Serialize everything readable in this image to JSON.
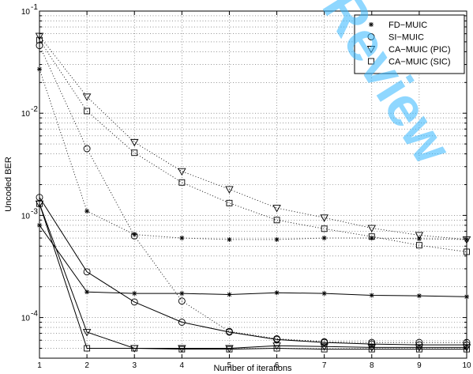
{
  "chart_data": {
    "type": "line",
    "xlabel": "Number of iterations",
    "ylabel": "Uncoded BER",
    "xlim": [
      1,
      10
    ],
    "ylim": [
      4e-05,
      0.1
    ],
    "yscale": "log",
    "grid": true,
    "legend_position": "top-right",
    "x_ticks": [
      "1",
      "2",
      "3",
      "4",
      "5",
      "6",
      "7",
      "8",
      "9",
      "10"
    ],
    "y_ticks": [
      {
        "value": 0.0001,
        "base": "10",
        "exp": "-4"
      },
      {
        "value": 0.001,
        "base": "10",
        "exp": "-3"
      },
      {
        "value": 0.01,
        "base": "10",
        "exp": "-2"
      },
      {
        "value": 0.1,
        "base": "10",
        "exp": "-1"
      }
    ],
    "x": [
      1,
      2,
      3,
      4,
      5,
      6,
      7,
      8,
      9,
      10
    ],
    "series": [
      {
        "name": "FD−MUIC",
        "marker": "star",
        "style": "solid",
        "values": [
          0.0008,
          0.000178,
          0.000172,
          0.000172,
          0.000168,
          0.000175,
          0.000172,
          0.000165,
          0.000163,
          0.00016
        ]
      },
      {
        "name": "FD−MUIC",
        "marker": "star",
        "style": "dotted",
        "values": [
          0.027,
          0.0011,
          0.00065,
          0.0006,
          0.00058,
          0.00058,
          0.0006,
          0.0006,
          0.00059,
          0.00058
        ]
      },
      {
        "name": "SI−MUIC",
        "marker": "circle",
        "style": "solid",
        "values": [
          0.0015,
          0.00028,
          0.000142,
          9e-05,
          7.2e-05,
          6.1e-05,
          5.7e-05,
          5.5e-05,
          5.4e-05,
          5.4e-05
        ]
      },
      {
        "name": "SI−MUIC",
        "marker": "circle",
        "style": "dotted",
        "values": [
          0.046,
          0.0045,
          0.00063,
          0.000145,
          7.3e-05,
          6.2e-05,
          5.8e-05,
          5.7e-05,
          5.7e-05,
          5.7e-05
        ]
      },
      {
        "name": "CA−MUIC (PIC)",
        "marker": "triangle-down",
        "style": "solid",
        "values": [
          0.0013,
          7.2e-05,
          5e-05,
          5e-05,
          5e-05,
          5.3e-05,
          5.2e-05,
          5.1e-05,
          5.1e-05,
          5.1e-05
        ]
      },
      {
        "name": "CA−MUIC (PIC)",
        "marker": "triangle-down",
        "style": "dotted",
        "values": [
          0.057,
          0.0145,
          0.0052,
          0.0027,
          0.0018,
          0.00118,
          0.00095,
          0.00075,
          0.00064,
          0.00058
        ]
      },
      {
        "name": "CA−MUIC (SIC)",
        "marker": "square",
        "style": "solid",
        "values": [
          0.0013,
          5e-05,
          5e-05,
          4.9e-05,
          4.9e-05,
          5e-05,
          4.9e-05,
          4.9e-05,
          4.9e-05,
          4.9e-05
        ]
      },
      {
        "name": "CA−MUIC (SIC)",
        "marker": "square",
        "style": "dotted",
        "values": [
          0.052,
          0.0105,
          0.0041,
          0.0021,
          0.00132,
          0.0009,
          0.00074,
          0.00062,
          0.00051,
          0.00044
        ]
      }
    ],
    "legend": [
      {
        "label": "FD−MUIC",
        "marker": "star"
      },
      {
        "label": "SI−MUIC",
        "marker": "circle"
      },
      {
        "label": "CA−MUIC (PIC)",
        "marker": "triangle-down"
      },
      {
        "label": "CA−MUIC (SIC)",
        "marker": "square"
      }
    ]
  },
  "watermark": {
    "text": "Review",
    "color": "#33b7ff"
  }
}
